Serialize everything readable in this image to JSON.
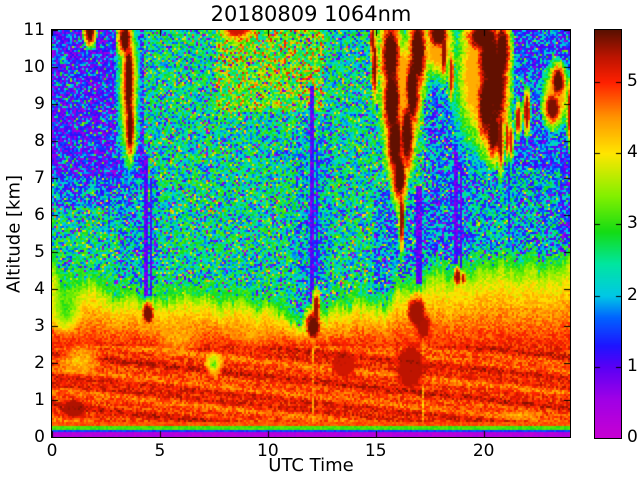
{
  "figure": {
    "title": "20180809 1064nm",
    "background": "#ffffff",
    "text_color": "#000000"
  },
  "axes": {
    "xlabel": "UTC Time",
    "ylabel": "Altitude [km]",
    "x_range": [
      0,
      24
    ],
    "y_range": [
      0,
      11
    ],
    "x_ticks": [
      "0",
      "5",
      "10",
      "15",
      "20"
    ],
    "x_tick_values": [
      0,
      5,
      10,
      15,
      20
    ],
    "y_ticks": [
      "0",
      "1",
      "2",
      "3",
      "4",
      "5",
      "6",
      "7",
      "8",
      "9",
      "10",
      "11"
    ],
    "y_tick_values": [
      0,
      1,
      2,
      3,
      4,
      5,
      6,
      7,
      8,
      9,
      10,
      11
    ]
  },
  "colorbar": {
    "tick_labels": [
      "0",
      "1",
      "2",
      "3",
      "4",
      "5"
    ],
    "tick_values": [
      0,
      1,
      2,
      3,
      4,
      5
    ],
    "range": [
      0,
      5.73
    ]
  },
  "chart_data": {
    "type": "heatmap",
    "title": "20180809 1064nm",
    "xlabel": "UTC Time",
    "ylabel": "Altitude [km]",
    "x_range_hours": [
      0,
      24
    ],
    "y_range_km": [
      0,
      11
    ],
    "colorbar_range": [
      0,
      5.73
    ],
    "colormap_stops": [
      [
        0.0,
        "#c800d2"
      ],
      [
        0.55,
        "#a000e6"
      ],
      [
        1.0,
        "#5a00f5"
      ],
      [
        1.3,
        "#1e14ff"
      ],
      [
        1.7,
        "#0064ff"
      ],
      [
        2.0,
        "#00c8e6"
      ],
      [
        2.45,
        "#00e6a0"
      ],
      [
        2.9,
        "#14dc14"
      ],
      [
        3.4,
        "#82f000"
      ],
      [
        4.0,
        "#ffe600"
      ],
      [
        4.5,
        "#ff9600"
      ],
      [
        5.0,
        "#ff2000"
      ],
      [
        5.35,
        "#be1400"
      ],
      [
        5.73,
        "#5a1000"
      ]
    ],
    "boundary_layer_top_km": [
      4.35,
      4.2,
      4.05,
      3.8,
      3.55,
      3.7,
      3.9,
      3.9,
      3.8,
      3.65,
      3.5,
      3.3,
      3.1,
      3.4,
      3.6,
      3.7,
      3.85,
      4.1,
      4.45,
      4.65,
      4.6,
      4.65,
      4.7,
      4.65,
      4.6
    ],
    "surface_layers": [
      {
        "z": [
          0.0,
          0.18
        ],
        "v": 0.3
      },
      {
        "z": [
          0.18,
          0.23
        ],
        "v": 1.5
      },
      {
        "z": [
          0.23,
          0.33
        ],
        "v": 3.1
      },
      {
        "z": [
          0.33,
          0.45
        ],
        "v": 4.8
      }
    ],
    "noise_default": {
      "base": 2.45,
      "pMag": 0.1,
      "pWarm": 0.06
    },
    "noise_zones": [
      {
        "t": [
          0,
          4.3
        ],
        "z": [
          7.0,
          11
        ],
        "base": 1.35,
        "pMag": 0.22,
        "pWarm": 0.07
      },
      {
        "t": [
          0,
          4.3
        ],
        "z": [
          6.2,
          7.0
        ],
        "base": 1.9,
        "pMag": 0.15,
        "pWarm": 0.05
      },
      {
        "t": [
          7.6,
          12.6
        ],
        "z": [
          8.8,
          11
        ],
        "base": 3.0,
        "pMag": 0.05,
        "pWarm": 0.2
      },
      {
        "t": [
          23.5,
          24
        ],
        "z": [
          4.9,
          11
        ],
        "base": 1.5,
        "pMag": 0.25,
        "pWarm": 0.05
      },
      {
        "t": [
          17.2,
          19.4
        ],
        "z": [
          4.8,
          9.3
        ],
        "base": 1.9,
        "pMag": 0.2,
        "pWarm": 0.05
      },
      {
        "t": [
          17.3,
          24
        ],
        "z": [
          7.3,
          11
        ],
        "base": 1.7,
        "pMag": 0.24,
        "pWarm": 0.05
      },
      {
        "t": [
          19.3,
          24
        ],
        "z": [
          4.9,
          7.3
        ],
        "base": 2.1,
        "pMag": 0.15,
        "pWarm": 0.04
      },
      {
        "t": [
          14.9,
          17.5
        ],
        "z": [
          3.9,
          6.7
        ],
        "base": 2.0,
        "pMag": 0.16,
        "pWarm": 0.04
      },
      {
        "t": [
          11.3,
          13.0
        ],
        "z": [
          3.4,
          8.8
        ],
        "base": 2.15,
        "pMag": 0.15,
        "pWarm": 0.04
      },
      {
        "t": [
          3.1,
          4.9
        ],
        "z": [
          3.7,
          7.0
        ],
        "base": 2.15,
        "pMag": 0.15,
        "pWarm": 0.04
      }
    ],
    "clouds": [
      [
        3.38,
        10.75,
        0.28,
        0.4,
        5.7
      ],
      [
        3.55,
        9.6,
        0.22,
        1.15,
        5.7
      ],
      [
        3.62,
        8.4,
        0.18,
        0.75,
        5.7
      ],
      [
        3.55,
        9.5,
        0.4,
        1.7,
        4.35
      ],
      [
        1.75,
        10.95,
        0.22,
        0.32,
        5.7
      ],
      [
        8.6,
        11.1,
        0.7,
        0.35,
        5.25
      ],
      [
        14.95,
        10.0,
        0.12,
        0.7,
        5.6
      ],
      [
        14.85,
        10.7,
        0.1,
        0.4,
        5.5
      ],
      [
        15.7,
        10.3,
        0.42,
        0.9,
        5.7
      ],
      [
        15.75,
        9.1,
        0.4,
        1.0,
        5.7
      ],
      [
        15.9,
        8.0,
        0.36,
        0.9,
        5.7
      ],
      [
        16.1,
        7.1,
        0.3,
        0.7,
        5.7
      ],
      [
        16.2,
        5.9,
        0.1,
        0.75,
        5.55
      ],
      [
        16.45,
        8.2,
        0.3,
        0.9,
        5.7
      ],
      [
        16.7,
        9.4,
        0.32,
        1.0,
        5.7
      ],
      [
        16.95,
        10.4,
        0.38,
        0.95,
        5.7
      ],
      [
        16.3,
        9.5,
        0.45,
        1.3,
        4.4
      ],
      [
        17.9,
        10.9,
        0.45,
        0.4,
        5.7
      ],
      [
        18.15,
        10.4,
        0.15,
        0.6,
        5.5
      ],
      [
        18.5,
        9.8,
        0.1,
        0.6,
        5.3
      ],
      [
        17.9,
        10.6,
        0.7,
        0.8,
        4.4
      ],
      [
        19.85,
        9.8,
        1.05,
        1.75,
        4.35
      ],
      [
        20.0,
        10.8,
        0.75,
        0.4,
        5.7
      ],
      [
        20.3,
        10.2,
        0.6,
        0.95,
        5.7
      ],
      [
        20.15,
        9.0,
        0.45,
        1.0,
        5.7
      ],
      [
        20.45,
        8.3,
        0.32,
        0.7,
        5.7
      ],
      [
        20.78,
        8.1,
        0.13,
        0.8,
        5.55
      ],
      [
        20.85,
        10.4,
        0.35,
        0.8,
        5.7
      ],
      [
        20.6,
        9.5,
        0.5,
        1.2,
        5.7
      ],
      [
        21.6,
        8.6,
        0.12,
        0.4,
        5.3
      ],
      [
        22.0,
        8.8,
        0.13,
        0.5,
        5.45
      ],
      [
        21.1,
        8.1,
        0.1,
        0.5,
        5.2
      ],
      [
        21.28,
        8.0,
        0.08,
        0.45,
        5.15
      ],
      [
        23.45,
        9.6,
        0.3,
        0.38,
        5.7
      ],
      [
        23.2,
        8.9,
        0.35,
        0.4,
        5.6
      ],
      [
        23.35,
        9.2,
        0.55,
        0.7,
        4.4
      ],
      [
        23.97,
        8.8,
        0.1,
        0.7,
        5.3
      ],
      [
        4.45,
        3.35,
        0.28,
        0.3,
        5.6
      ],
      [
        12.1,
        3.0,
        0.35,
        0.4,
        5.65
      ],
      [
        12.25,
        3.45,
        0.15,
        0.45,
        5.5
      ],
      [
        16.9,
        3.35,
        0.5,
        0.5,
        5.45
      ],
      [
        17.2,
        3.0,
        0.42,
        0.45,
        5.4
      ],
      [
        18.78,
        4.35,
        0.15,
        0.22,
        5.5
      ],
      [
        19.05,
        4.3,
        0.1,
        0.16,
        5.45
      ],
      [
        1.0,
        0.8,
        0.8,
        0.35,
        5.4
      ],
      [
        16.6,
        1.9,
        0.9,
        0.85,
        5.35
      ],
      [
        13.5,
        2.0,
        0.8,
        0.5,
        5.25
      ]
    ],
    "attenuation_streaks": [
      {
        "t": 4.38,
        "w": 0.16,
        "z0": 3.5,
        "z1": 7.6,
        "v": 1.0
      },
      {
        "t": 4.6,
        "w": 0.12,
        "z0": 3.5,
        "z1": 7.0,
        "v": 1.2
      },
      {
        "t": 2.6,
        "w": 0.1,
        "z0": 5.2,
        "z1": 11,
        "v": 1.7
      },
      {
        "t": 12.02,
        "w": 0.18,
        "z0": 3.4,
        "z1": 9.5,
        "v": 1.1
      },
      {
        "t": 12.25,
        "w": 0.12,
        "z0": 3.4,
        "z1": 8.0,
        "v": 1.4
      },
      {
        "t": 17.0,
        "w": 0.22,
        "z0": 3.8,
        "z1": 6.8,
        "v": 1.0
      },
      {
        "t": 18.72,
        "w": 0.16,
        "z0": 4.6,
        "z1": 7.9,
        "v": 1.0
      },
      {
        "t": 18.98,
        "w": 0.12,
        "z0": 4.55,
        "z1": 7.6,
        "v": 1.1
      },
      {
        "t": 21.15,
        "w": 0.12,
        "z0": 5.2,
        "z1": 7.6,
        "v": 1.5
      },
      {
        "t": 17.18,
        "w": 0.14,
        "z0": 0.38,
        "z1": 3.4,
        "v": 4.35,
        "mode": "set"
      },
      {
        "t": 12.1,
        "w": 0.1,
        "z0": 0.38,
        "z1": 3.0,
        "v": 4.5,
        "mode": "set"
      }
    ],
    "cool_patches": [
      [
        0.6,
        3.5,
        0.9,
        0.8,
        2.95
      ],
      [
        1.3,
        2.1,
        1.2,
        0.5,
        4.05
      ],
      [
        5.8,
        2.7,
        1.3,
        0.6,
        4.3
      ],
      [
        7.5,
        2.0,
        0.5,
        0.4,
        3.1
      ],
      [
        9.3,
        2.95,
        1.5,
        0.6,
        4.35
      ],
      [
        21.6,
        0.62,
        1.2,
        0.14,
        4.3
      ]
    ]
  }
}
